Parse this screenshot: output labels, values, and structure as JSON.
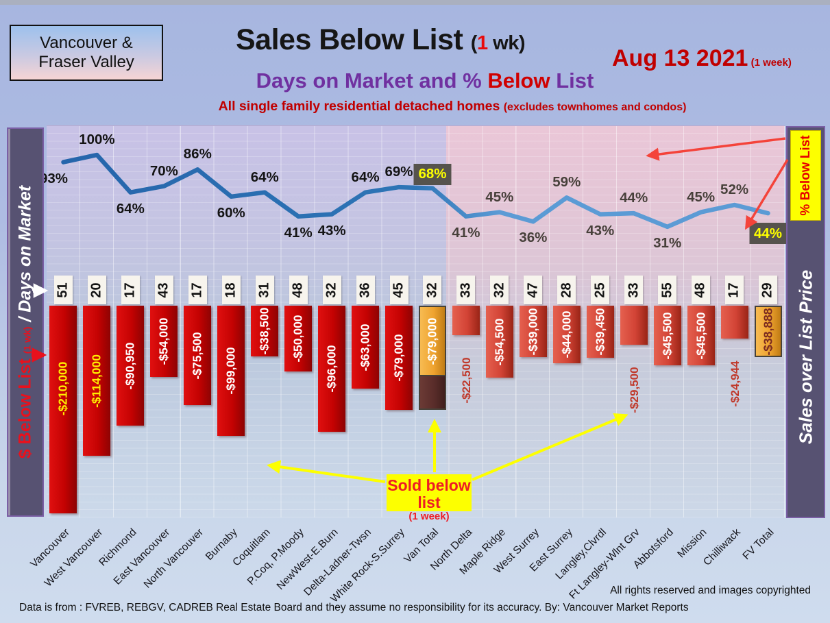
{
  "header": {
    "region_line1": "Vancouver &",
    "region_line2": "Fraser Valley",
    "title": "Sales Below List",
    "title_paren_prefix": "(",
    "title_paren_red": "1",
    "title_paren_suffix": " wk)",
    "date": "Aug 13  2021",
    "date_suffix": " (1 week)",
    "subtitle_purple1": "Days on Market and % ",
    "subtitle_red": "Below ",
    "subtitle_purple2": "List",
    "tagline": "All single family residential detached homes ",
    "tagline_paren": "(excludes townhomes and condos)"
  },
  "left_axis": {
    "label_red": "$ Below List ",
    "label_small": "(1 wk)",
    "label_white": " / Days on Market"
  },
  "right_axis": {
    "top_label": "% Below List",
    "label": "Sales over List Price"
  },
  "annotations": {
    "sold_below_line1": "Sold below list",
    "sold_below_line2": "(1 week)"
  },
  "footer": {
    "rights": "All rights reserved and  images copyrighted",
    "source": "Data is from : FVREB, REBGV, CADREB Real Estate Board and they assume no responsibility for its accuracy. By: Vancouver Market Reports"
  },
  "colors": {
    "bar_red_vancouver": "#c40202",
    "bar_red_fraser": "#d24335",
    "bar_gold_total": "#efa32f",
    "bar_brown_extension": "#5a2d2a",
    "line_blue_left": "#2565ab",
    "line_blue_right": "#5b9bd5",
    "highlight_bg": "#56534d",
    "highlight_text": "#fdff00",
    "accent_purple": "#7030a0",
    "accent_red": "#c00000",
    "axis_bar_purple": "#575272",
    "annotation_yellow": "#fdff00"
  },
  "chart_data": {
    "type": "bar+line",
    "title": "Sales Below List (1 wk)",
    "subtitle": "Days on Market and % Below List",
    "date": "Aug 13 2021 (1 week)",
    "line_series_name": "% Below List",
    "bar_series_name": "$ Below List (1 wk)",
    "label_series_name": "Days on Market",
    "line_ylim": [
      0,
      100
    ],
    "grid": true,
    "categories": [
      {
        "name": "Vancouver",
        "days": 51,
        "pct": 93,
        "pct_pos": "below",
        "value": -210000,
        "label": "-$210,000",
        "label_color": "yellow"
      },
      {
        "name": "West Vancouver",
        "days": 20,
        "pct": 100,
        "pct_pos": "above",
        "value": -114000,
        "label": "-$114,000",
        "label_color": "yellow"
      },
      {
        "name": "Richmond",
        "days": 17,
        "pct": 64,
        "pct_pos": "below",
        "value": -90950,
        "label": "-$90,950",
        "label_color": "white"
      },
      {
        "name": "East Vancouver",
        "days": 43,
        "pct": 70,
        "pct_pos": "above",
        "value": -54000,
        "label": "-$54,000",
        "label_color": "white"
      },
      {
        "name": "North Vancouver",
        "days": 17,
        "pct": 86,
        "pct_pos": "above",
        "value": -75500,
        "label": "-$75,500",
        "label_color": "white"
      },
      {
        "name": "Burnaby",
        "days": 18,
        "pct": 60,
        "pct_pos": "below",
        "value": -99000,
        "label": "-$99,000",
        "label_color": "white"
      },
      {
        "name": "Coquitlam",
        "days": 31,
        "pct": 64,
        "pct_pos": "above",
        "value": -38500,
        "label": "-$38,500",
        "label_color": "white"
      },
      {
        "name": "P.Coq, P.Moody",
        "days": 48,
        "pct": 41,
        "pct_pos": "below",
        "value": -50000,
        "label": "-$50,000",
        "label_color": "white"
      },
      {
        "name": "NewWest-E.Burn",
        "days": 32,
        "pct": 43,
        "pct_pos": "below",
        "value": -96000,
        "label": "-$96,000",
        "label_color": "white"
      },
      {
        "name": "Delta-Ladner-Twsn",
        "days": 36,
        "pct": 64,
        "pct_pos": "above",
        "value": -63000,
        "label": "-$63,000",
        "label_color": "white"
      },
      {
        "name": "White Rock-S.Surrey",
        "days": 45,
        "pct": 69,
        "pct_pos": "above",
        "value": -79000,
        "label": "-$79,000",
        "label_color": "white"
      },
      {
        "name": "Van Total",
        "days": 32,
        "pct": 68,
        "pct_pos": "box-above",
        "value": -79000,
        "label": "-$79,000",
        "label_color": "white",
        "bar": "gold",
        "extension": true
      },
      {
        "name": "North Delta",
        "days": 33,
        "pct": 41,
        "pct_pos": "below",
        "value": -22500,
        "label": "-$22,500",
        "label_color": "red-below"
      },
      {
        "name": "Maple Ridge",
        "days": 32,
        "pct": 45,
        "pct_pos": "above",
        "value": -54500,
        "label": "-$54,500",
        "label_color": "white"
      },
      {
        "name": "West Surrey",
        "days": 47,
        "pct": 36,
        "pct_pos": "below",
        "value": -39000,
        "label": "-$39,000",
        "label_color": "white"
      },
      {
        "name": "East Surrey",
        "days": 28,
        "pct": 59,
        "pct_pos": "above",
        "value": -44000,
        "label": "-$44,000",
        "label_color": "white"
      },
      {
        "name": "Langley,Clvrdl",
        "days": 25,
        "pct": 43,
        "pct_pos": "below",
        "value": -39450,
        "label": "-$39,450",
        "label_color": "white"
      },
      {
        "name": "Ft Langley-Wlnt Grv",
        "days": 33,
        "pct": 44,
        "pct_pos": "above",
        "value": -29500,
        "label": "-$29,500",
        "label_color": "red-below"
      },
      {
        "name": "Abbotsford",
        "days": 55,
        "pct": 31,
        "pct_pos": "below",
        "value": -45500,
        "label": "-$45,500",
        "label_color": "white"
      },
      {
        "name": "Mission",
        "days": 48,
        "pct": 45,
        "pct_pos": "above",
        "value": -45500,
        "label": "-$45,500",
        "label_color": "white"
      },
      {
        "name": "Chilliwack",
        "days": 17,
        "pct": 52,
        "pct_pos": "above",
        "value": -24944,
        "label": "-$24,944",
        "label_color": "red-below"
      },
      {
        "name": "FV Total",
        "days": 29,
        "pct": 44,
        "pct_pos": "box-below",
        "value": -38888,
        "label": "-$38,888",
        "label_color": "maroon",
        "bar": "gold"
      }
    ]
  }
}
